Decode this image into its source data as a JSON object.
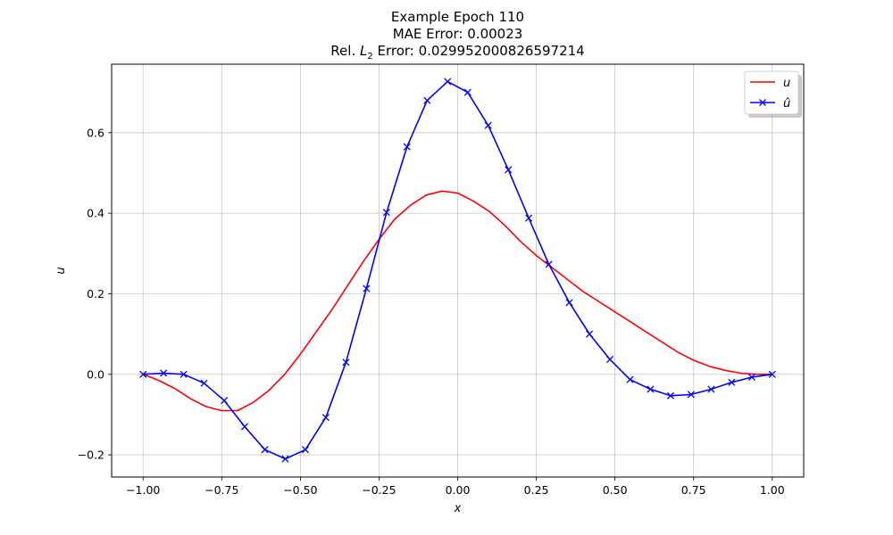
{
  "chart_data": {
    "type": "line",
    "title_lines": [
      "Example Epoch 110",
      "MAE Error: 0.00023"
    ],
    "title_rel_prefix": "Rel. ",
    "title_rel_L": "L",
    "title_rel_sub": "2",
    "title_rel_suffix": " Error: 0.029952000826597214",
    "xlabel": "x",
    "ylabel": "u",
    "xlim": [
      -1.1,
      1.1
    ],
    "ylim": [
      -0.255,
      0.77
    ],
    "xticks": [
      -1.0,
      -0.75,
      -0.5,
      -0.25,
      0.0,
      0.25,
      0.5,
      0.75,
      1.0
    ],
    "xtick_labels": [
      "−1.00",
      "−0.75",
      "−0.50",
      "−0.25",
      "0.00",
      "0.25",
      "0.50",
      "0.75",
      "1.00"
    ],
    "yticks": [
      -0.2,
      0.0,
      0.2,
      0.4,
      0.6
    ],
    "ytick_labels": [
      "−0.2",
      "0.0",
      "0.2",
      "0.4",
      "0.6"
    ],
    "grid": true,
    "legend_position": "top-right",
    "series": [
      {
        "name": "u",
        "color": "#ff0000",
        "marker": "none",
        "x": [
          -1.0,
          -0.95,
          -0.9,
          -0.85,
          -0.8,
          -0.75,
          -0.7,
          -0.65,
          -0.6,
          -0.55,
          -0.5,
          -0.45,
          -0.4,
          -0.35,
          -0.3,
          -0.25,
          -0.2,
          -0.15,
          -0.1,
          -0.05,
          0.0,
          0.05,
          0.1,
          0.15,
          0.2,
          0.25,
          0.3,
          0.35,
          0.4,
          0.45,
          0.5,
          0.55,
          0.6,
          0.65,
          0.7,
          0.75,
          0.8,
          0.85,
          0.9,
          0.95,
          1.0
        ],
        "y": [
          0.0,
          -0.015,
          -0.035,
          -0.06,
          -0.08,
          -0.09,
          -0.09,
          -0.07,
          -0.04,
          0.0,
          0.05,
          0.105,
          0.16,
          0.22,
          0.28,
          0.335,
          0.385,
          0.42,
          0.445,
          0.455,
          0.45,
          0.43,
          0.405,
          0.37,
          0.33,
          0.295,
          0.265,
          0.235,
          0.205,
          0.18,
          0.155,
          0.13,
          0.105,
          0.08,
          0.055,
          0.035,
          0.02,
          0.01,
          0.003,
          0.0,
          0.0
        ]
      },
      {
        "name": "û",
        "color": "#0000ff",
        "marker": "x",
        "x": [
          -1.0,
          -0.935,
          -0.871,
          -0.806,
          -0.742,
          -0.677,
          -0.613,
          -0.548,
          -0.484,
          -0.419,
          -0.355,
          -0.29,
          -0.226,
          -0.161,
          -0.097,
          -0.032,
          0.032,
          0.097,
          0.161,
          0.226,
          0.29,
          0.355,
          0.419,
          0.484,
          0.548,
          0.613,
          0.677,
          0.742,
          0.806,
          0.871,
          0.935,
          1.0
        ],
        "y": [
          0.0,
          0.003,
          0.0,
          -0.022,
          -0.065,
          -0.13,
          -0.187,
          -0.21,
          -0.187,
          -0.107,
          0.03,
          0.213,
          0.402,
          0.565,
          0.68,
          0.727,
          0.7,
          0.618,
          0.508,
          0.388,
          0.273,
          0.178,
          0.1,
          0.037,
          -0.013,
          -0.037,
          -0.053,
          -0.05,
          -0.037,
          -0.02,
          -0.007,
          0.0
        ]
      }
    ]
  },
  "legend": {
    "u_label": "u",
    "uhat_label": "û"
  }
}
